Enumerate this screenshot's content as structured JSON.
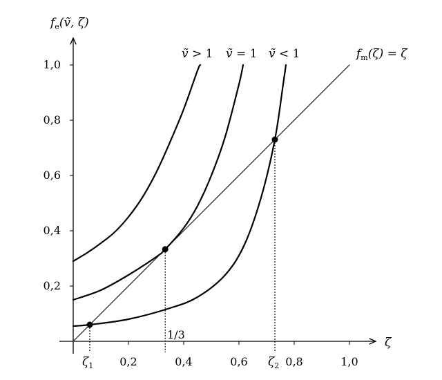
{
  "chart_data": {
    "type": "line",
    "xlabel": "ζ",
    "ylabel": "f_e(ṽ, ζ)",
    "ylabel_parts": {
      "f": "f",
      "sub": "e",
      "args": "(ṽ, ζ)"
    },
    "xlim": [
      0,
      1.1
    ],
    "ylim": [
      0,
      1.1
    ],
    "x_ticks": [
      "0,2",
      "0,4",
      "0,6",
      "0,8",
      "1,0"
    ],
    "x_tick_values": [
      0.2,
      0.4,
      0.6,
      0.8,
      1.0
    ],
    "y_ticks": [
      "0,2",
      "0,4",
      "0,6",
      "0,8",
      "1,0"
    ],
    "y_tick_values": [
      0.2,
      0.4,
      0.6,
      0.8,
      1.0
    ],
    "series": [
      {
        "name": "ṽ > 1",
        "x": [
          0.0,
          0.05,
          0.1,
          0.15,
          0.2,
          0.25,
          0.3,
          0.35,
          0.4,
          0.45,
          0.46
        ],
        "y": [
          0.29,
          0.32,
          0.355,
          0.395,
          0.45,
          0.52,
          0.61,
          0.72,
          0.84,
          0.98,
          1.0
        ]
      },
      {
        "name": "ṽ = 1",
        "x": [
          0.0,
          0.1,
          0.2,
          0.3,
          0.333,
          0.4,
          0.45,
          0.5,
          0.55,
          0.6,
          0.615
        ],
        "y": [
          0.15,
          0.185,
          0.24,
          0.305,
          0.333,
          0.41,
          0.49,
          0.6,
          0.74,
          0.93,
          1.0
        ]
      },
      {
        "name": "ṽ < 1",
        "x": [
          0.0,
          0.06,
          0.2,
          0.35,
          0.45,
          0.55,
          0.62,
          0.68,
          0.73,
          0.76,
          0.77
        ],
        "y": [
          0.055,
          0.06,
          0.08,
          0.12,
          0.16,
          0.24,
          0.35,
          0.52,
          0.73,
          0.93,
          1.0
        ]
      },
      {
        "name": "f_m(ζ) = ζ",
        "x": [
          0.0,
          1.0
        ],
        "y": [
          0.0,
          1.0
        ]
      }
    ],
    "series_labels": [
      {
        "lhs": "ṽ",
        "rel": " > 1"
      },
      {
        "lhs": "ṽ",
        "rel": " = 1"
      },
      {
        "lhs": "ṽ",
        "rel": " < 1"
      },
      {
        "f": "f",
        "sub": "m",
        "rest": "(ζ) = ζ"
      }
    ],
    "points": [
      {
        "name": "ζ₁",
        "x": 0.06,
        "y": 0.06
      },
      {
        "name": "",
        "x": 0.333,
        "y": 0.333
      },
      {
        "name": "ζ₂",
        "x": 0.73,
        "y": 0.73
      }
    ],
    "annotations": {
      "one_third": "1/3",
      "zeta1": {
        "base": "ζ",
        "sub": "1"
      },
      "zeta2": {
        "base": "ζ",
        "sub": "2"
      }
    },
    "grid": false
  }
}
